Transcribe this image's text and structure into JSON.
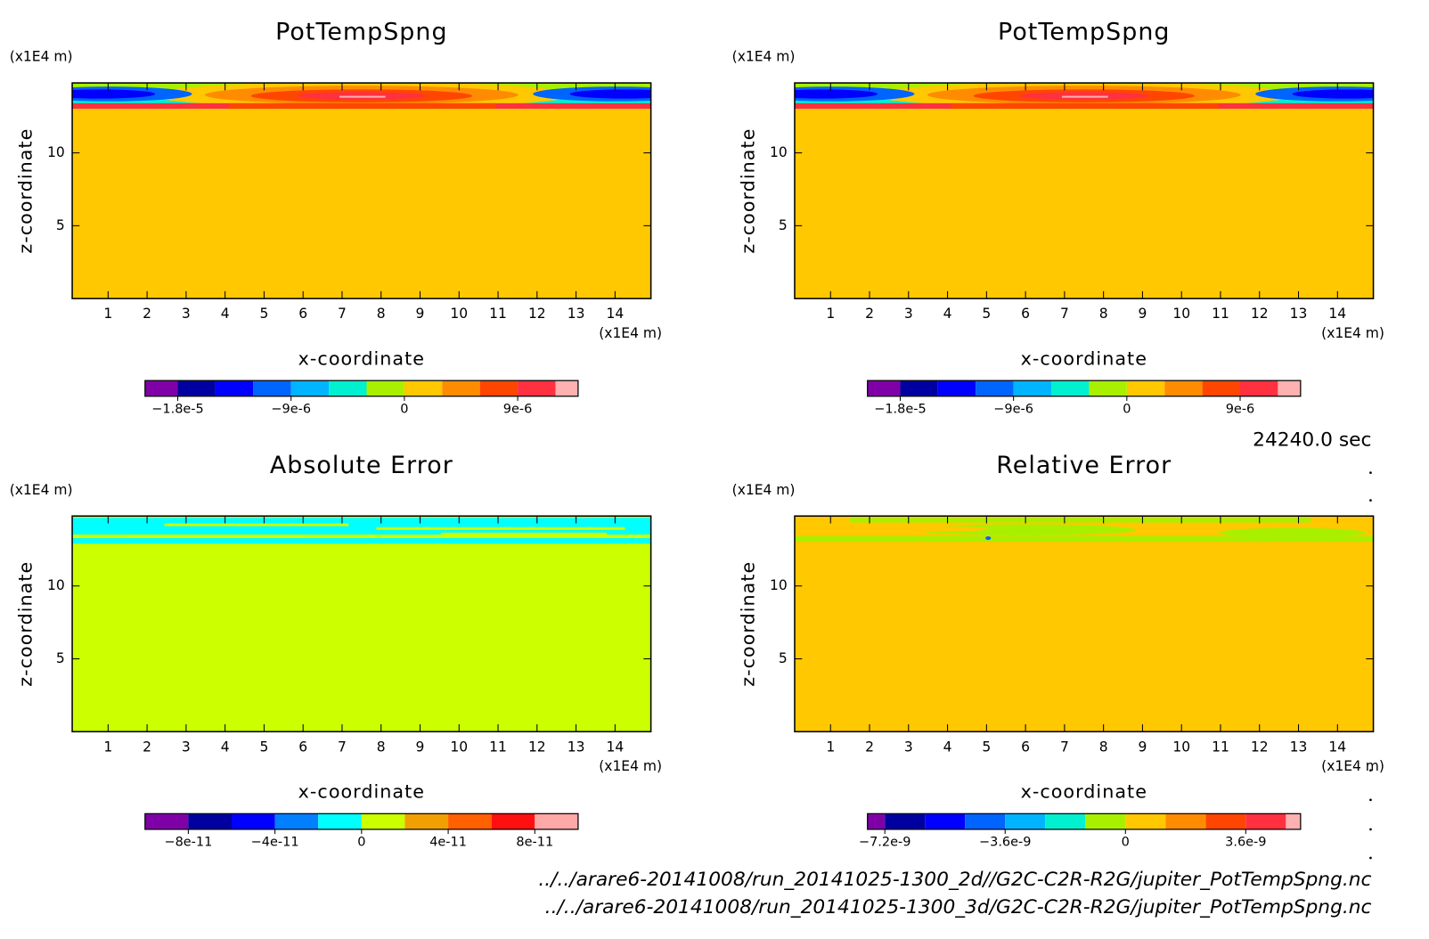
{
  "chart_data": [
    {
      "type": "contour",
      "title": "PotTempSpng",
      "xlabel": "x-coordinate",
      "ylabel": "z-coordinate",
      "x_unit": "(x1E4 m)",
      "y_unit": "(x1E4 m)",
      "xlim": [
        0.08,
        14.92
      ],
      "ylim": [
        0,
        14.8
      ],
      "xticks": [
        1,
        2,
        3,
        4,
        5,
        6,
        7,
        8,
        9,
        10,
        11,
        12,
        13,
        14
      ],
      "yticks": [
        5,
        10
      ],
      "colorbar": {
        "colors": [
          "#8000a8",
          "#0000a0",
          "#0000ff",
          "#0064ff",
          "#00b4ff",
          "#00f0d0",
          "#a8f000",
          "#ffc800",
          "#ff8c00",
          "#ff4600",
          "#ff3040",
          "#ffb0b0"
        ],
        "levels": [
          -1.8e-05,
          -1.5e-05,
          -1.2e-05,
          -9e-06,
          -6e-06,
          -3e-06,
          0,
          3e-06,
          6e-06,
          9e-06,
          1.2e-05
        ],
        "clim": [
          -2.06e-05,
          1.38e-05
        ],
        "ticks": [
          {
            "value": -1.8e-05,
            "label": "−1.8e-5"
          },
          {
            "value": -9e-06,
            "label": "−9e-6"
          },
          0,
          {
            "value": 9e-06,
            "label": "9e-6"
          }
        ]
      }
    },
    {
      "type": "contour",
      "title": "PotTempSpng",
      "xlabel": "x-coordinate",
      "ylabel": "z-coordinate",
      "x_unit": "(x1E4 m)",
      "y_unit": "(x1E4 m)",
      "xlim": [
        0.08,
        14.92
      ],
      "ylim": [
        0,
        14.8
      ],
      "xticks": [
        1,
        2,
        3,
        4,
        5,
        6,
        7,
        8,
        9,
        10,
        11,
        12,
        13,
        14
      ],
      "yticks": [
        5,
        10
      ],
      "colorbar": {
        "colors": [
          "#8000a8",
          "#0000a0",
          "#0000ff",
          "#0064ff",
          "#00b4ff",
          "#00f0d0",
          "#a8f000",
          "#ffc800",
          "#ff8c00",
          "#ff4600",
          "#ff3040",
          "#ffb0b0"
        ],
        "levels": [
          -1.8e-05,
          -1.5e-05,
          -1.2e-05,
          -9e-06,
          -6e-06,
          -3e-06,
          0,
          3e-06,
          6e-06,
          9e-06,
          1.2e-05
        ],
        "clim": [
          -2.06e-05,
          1.38e-05
        ],
        "ticks": [
          {
            "value": -1.8e-05,
            "label": "−1.8e-5"
          },
          {
            "value": -9e-06,
            "label": "−9e-6"
          },
          0,
          {
            "value": 9e-06,
            "label": "9e-6"
          }
        ]
      }
    },
    {
      "type": "contour",
      "title": "Absolute Error",
      "xlabel": "x-coordinate",
      "ylabel": "z-coordinate",
      "x_unit": "(x1E4 m)",
      "y_unit": "(x1E4 m)",
      "xlim": [
        0.08,
        14.92
      ],
      "ylim": [
        0,
        14.8
      ],
      "xticks": [
        1,
        2,
        3,
        4,
        5,
        6,
        7,
        8,
        9,
        10,
        11,
        12,
        13,
        14
      ],
      "yticks": [
        5,
        10
      ],
      "colorbar": {
        "colors": [
          "#8000a8",
          "#0000a0",
          "#0000ff",
          "#0080ff",
          "#00ffff",
          "#ccff00",
          "#f0a000",
          "#ff6000",
          "#ff1010",
          "#ffa8a8"
        ],
        "levels": [
          -8e-11,
          -6e-11,
          -4e-11,
          -2e-11,
          0,
          2e-11,
          4e-11,
          6e-11,
          8e-11
        ],
        "clim": [
          -1e-10,
          1e-10
        ],
        "ticks": [
          {
            "value": -8e-11,
            "label": "−8e-11"
          },
          {
            "value": -4e-11,
            "label": "−4e-11"
          },
          0,
          {
            "value": 4e-11,
            "label": "4e-11"
          },
          {
            "value": 8e-11,
            "label": "8e-11"
          }
        ]
      }
    },
    {
      "type": "contour",
      "title": "Relative Error",
      "xlabel": "x-coordinate",
      "ylabel": "z-coordinate",
      "x_unit": "(x1E4 m)",
      "y_unit": "(x1E4 m)",
      "xlim": [
        0.08,
        14.92
      ],
      "ylim": [
        0,
        14.8
      ],
      "xticks": [
        1,
        2,
        3,
        4,
        5,
        6,
        7,
        8,
        9,
        10,
        11,
        12,
        13,
        14
      ],
      "yticks": [
        5,
        10
      ],
      "colorbar": {
        "colors": [
          "#8000a8",
          "#0000a0",
          "#0000ff",
          "#0064ff",
          "#00b4ff",
          "#00f0d0",
          "#a8f000",
          "#ffc800",
          "#ff8c00",
          "#ff4600",
          "#ff3040",
          "#ffb0b0"
        ],
        "levels": [
          -7.2e-09,
          -6e-09,
          -4.8e-09,
          -3.6e-09,
          -2.4e-09,
          -1.2e-09,
          0,
          1.2e-09,
          2.4e-09,
          3.6e-09,
          4.8e-09
        ],
        "clim": [
          -7.72e-09,
          5.24e-09
        ],
        "ticks": [
          {
            "value": -7.2e-09,
            "label": "−7.2e-9"
          },
          {
            "value": -3.6e-09,
            "label": "−3.6e-9"
          },
          0,
          {
            "value": 3.6e-09,
            "label": "3.6e-9"
          }
        ]
      }
    }
  ],
  "time": "24240.0 sec",
  "files": [
    "../../arare6-20141008/run_20141025-1300_2d//G2C-C2R-R2G/jupiter_PotTempSpng.nc",
    "../../arare6-20141008/run_20141025-1300_3d/G2C-C2R-R2G/jupiter_PotTempSpng.nc"
  ]
}
